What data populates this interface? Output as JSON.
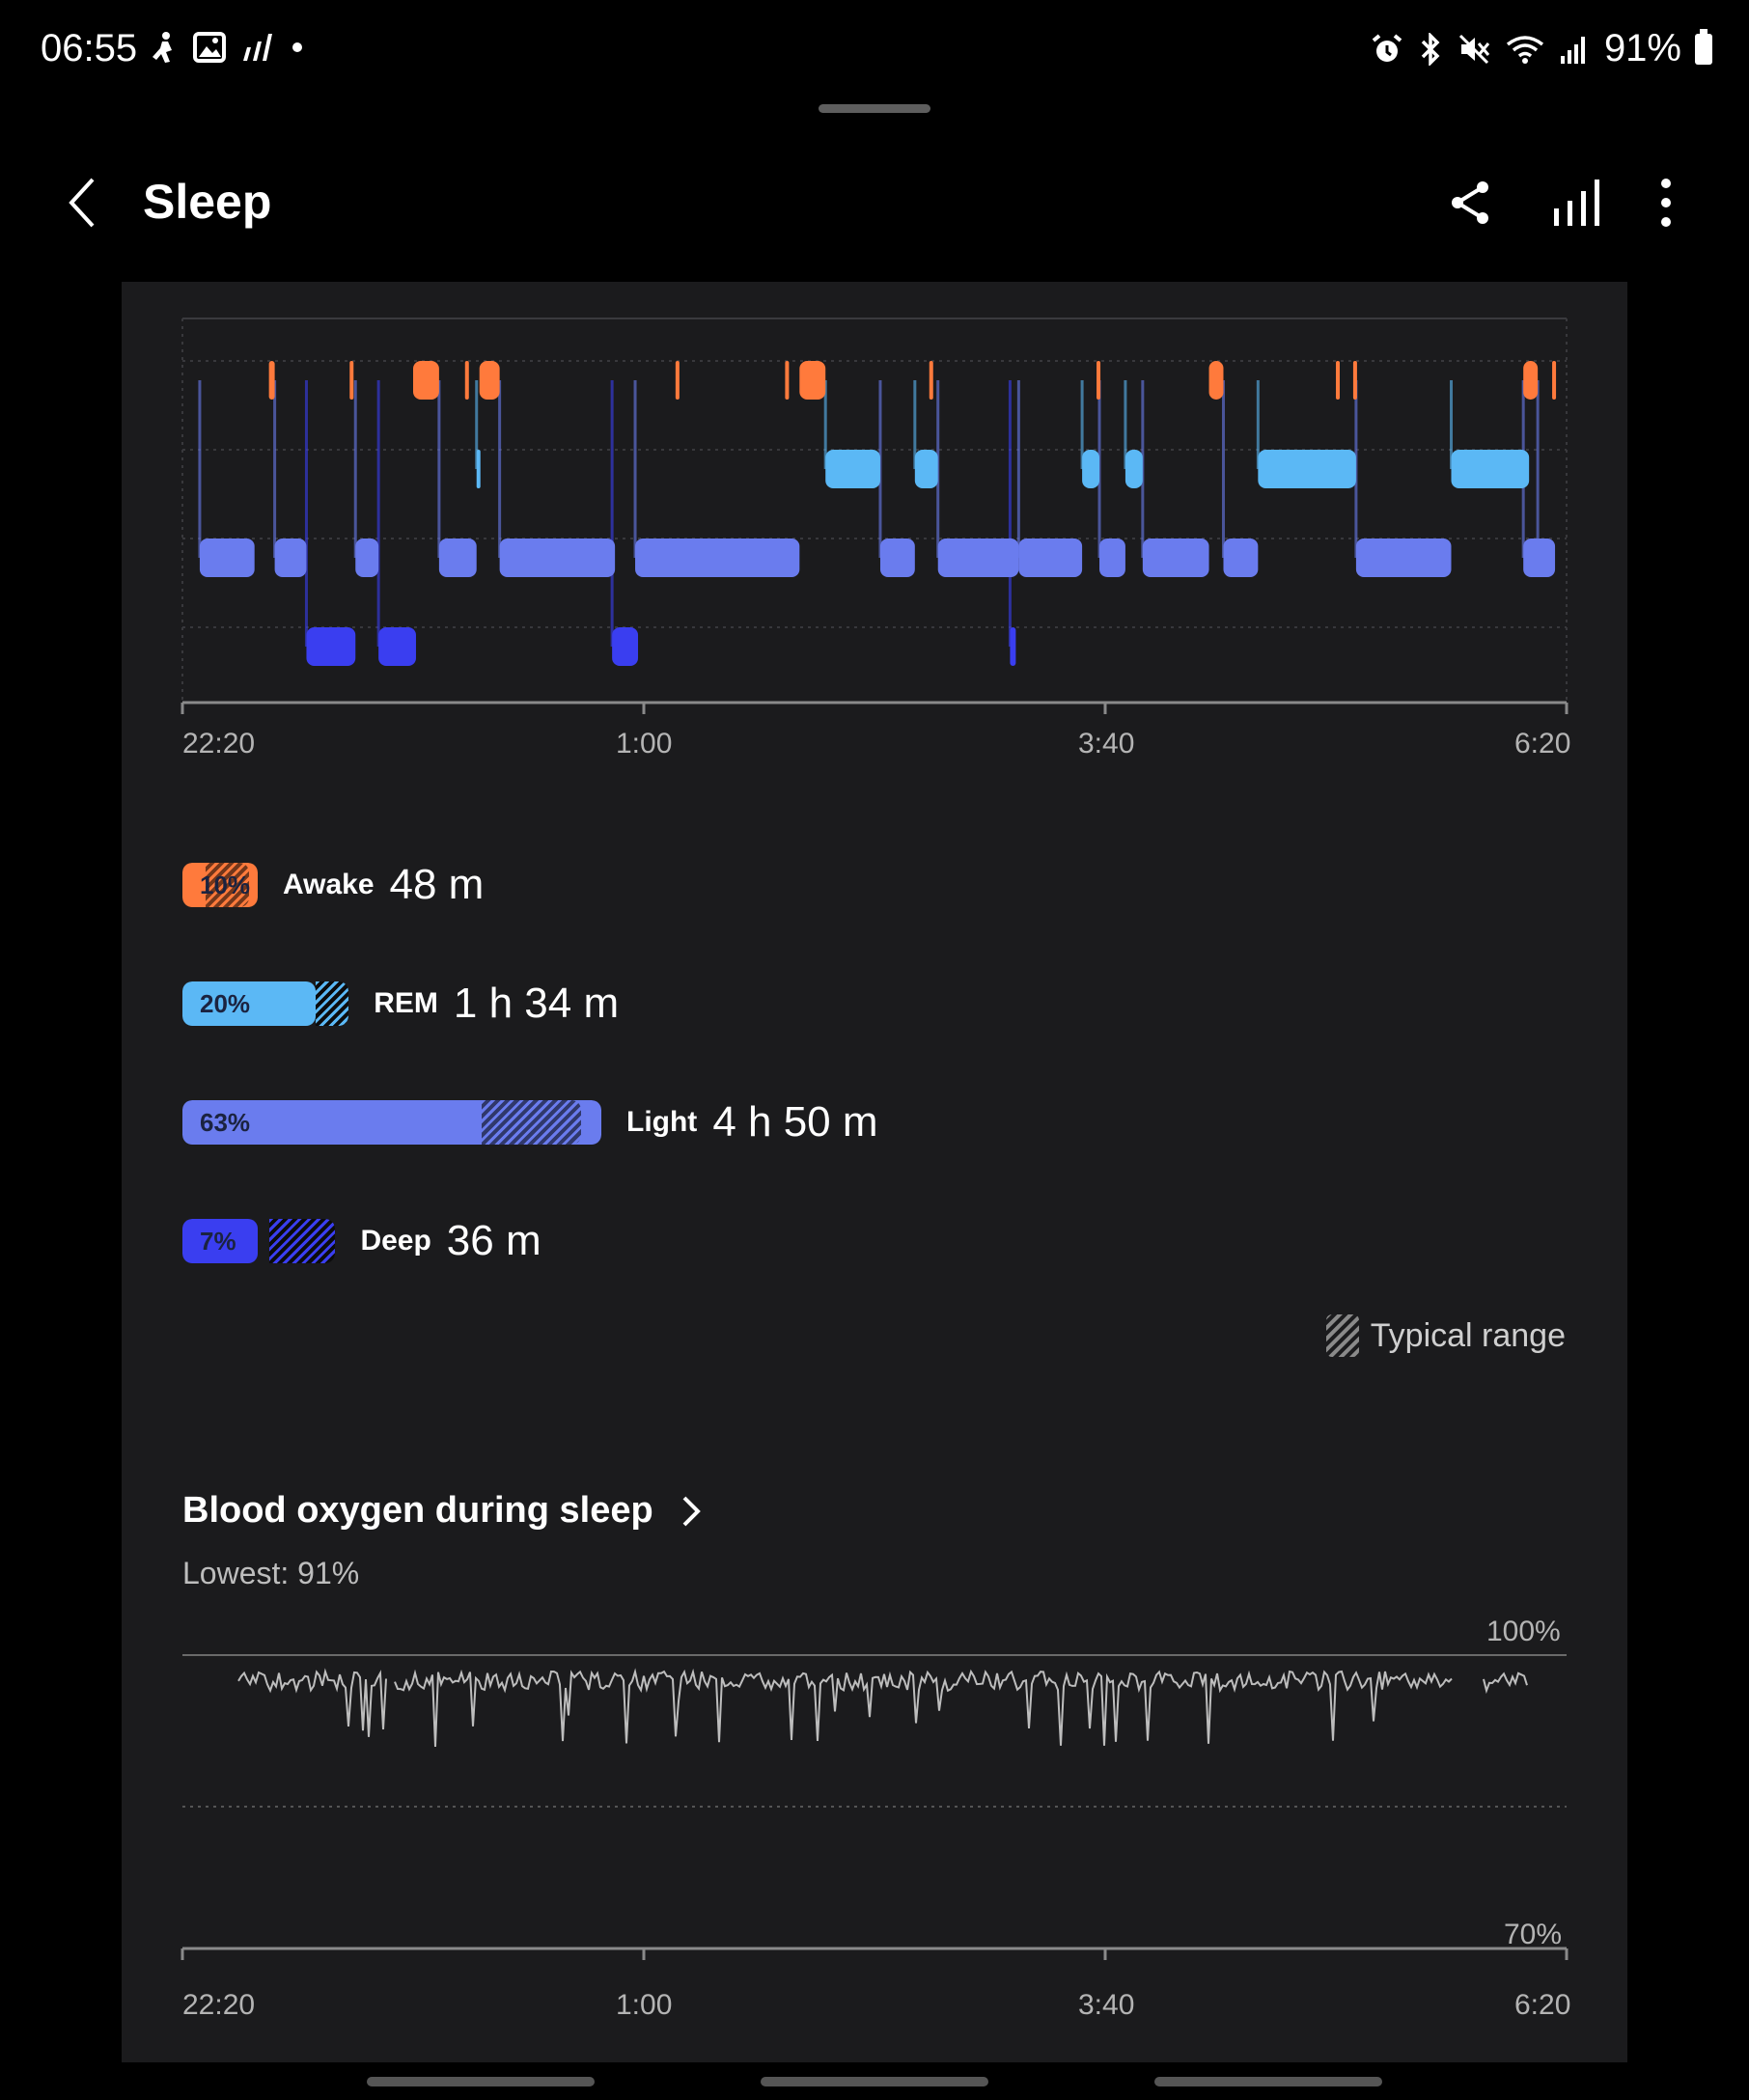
{
  "status_bar": {
    "time": "06:55",
    "left_icons": [
      "person-walk-icon",
      "gallery-icon",
      "signal-bars-icon",
      "dot-icon"
    ],
    "right_icons": [
      "alarm-icon",
      "bluetooth-icon",
      "mute-icon",
      "wifi-icon",
      "cell-signal-icon"
    ],
    "battery": "91%"
  },
  "app_bar": {
    "title": "Sleep",
    "actions": [
      "share-icon",
      "chart-icon",
      "more-vert-icon"
    ]
  },
  "hypnogram": {
    "x_ticks": [
      "22:20",
      "1:00",
      "3:40",
      "6:20"
    ],
    "stages": [
      "Awake",
      "REM",
      "Light",
      "Deep"
    ],
    "colors": {
      "awake": "#ff7a3c",
      "rem": "#5bb8f5",
      "light": "#6a7cee",
      "deep": "#3a3ef0"
    },
    "start_minutes": 0,
    "end_minutes": 480,
    "segments": [
      {
        "stage": "light",
        "from": 6,
        "to": 25
      },
      {
        "stage": "awake",
        "from": 30,
        "to": 32
      },
      {
        "stage": "light",
        "from": 32,
        "to": 43
      },
      {
        "stage": "deep",
        "from": 43,
        "to": 60
      },
      {
        "stage": "awake",
        "from": 58,
        "to": 59
      },
      {
        "stage": "light",
        "from": 60,
        "to": 68
      },
      {
        "stage": "deep",
        "from": 68,
        "to": 81
      },
      {
        "stage": "awake",
        "from": 80,
        "to": 89
      },
      {
        "stage": "light",
        "from": 89,
        "to": 102
      },
      {
        "stage": "awake",
        "from": 98,
        "to": 99
      },
      {
        "stage": "rem",
        "from": 102,
        "to": 103
      },
      {
        "stage": "awake",
        "from": 103,
        "to": 110
      },
      {
        "stage": "light",
        "from": 110,
        "to": 150
      },
      {
        "stage": "deep",
        "from": 149,
        "to": 158
      },
      {
        "stage": "light",
        "from": 157,
        "to": 214
      },
      {
        "stage": "awake",
        "from": 171,
        "to": 172
      },
      {
        "stage": "awake",
        "from": 209,
        "to": 210
      },
      {
        "stage": "awake",
        "from": 214,
        "to": 223
      },
      {
        "stage": "rem",
        "from": 223,
        "to": 242
      },
      {
        "stage": "light",
        "from": 242,
        "to": 254
      },
      {
        "stage": "awake",
        "from": 259,
        "to": 260
      },
      {
        "stage": "rem",
        "from": 254,
        "to": 262
      },
      {
        "stage": "light",
        "from": 262,
        "to": 290
      },
      {
        "stage": "deep",
        "from": 287,
        "to": 289
      },
      {
        "stage": "light",
        "from": 290,
        "to": 312
      },
      {
        "stage": "rem",
        "from": 312,
        "to": 318
      },
      {
        "stage": "light",
        "from": 318,
        "to": 327
      },
      {
        "stage": "awake",
        "from": 317,
        "to": 318
      },
      {
        "stage": "rem",
        "from": 327,
        "to": 333
      },
      {
        "stage": "light",
        "from": 333,
        "to": 356
      },
      {
        "stage": "awake",
        "from": 356,
        "to": 361
      },
      {
        "stage": "light",
        "from": 361,
        "to": 373
      },
      {
        "stage": "rem",
        "from": 373,
        "to": 407
      },
      {
        "stage": "awake",
        "from": 400,
        "to": 401
      },
      {
        "stage": "awake",
        "from": 406,
        "to": 407
      },
      {
        "stage": "light",
        "from": 407,
        "to": 440
      },
      {
        "stage": "rem",
        "from": 440,
        "to": 467
      },
      {
        "stage": "awake",
        "from": 465,
        "to": 470
      },
      {
        "stage": "light",
        "from": 470,
        "to": 474
      },
      {
        "stage": "light",
        "from": 465,
        "to": 476
      },
      {
        "stage": "awake",
        "from": 475,
        "to": 476
      }
    ]
  },
  "stages_summary": [
    {
      "name": "Awake",
      "percent": "10%",
      "duration": "48 m",
      "fraction": 0.1,
      "typical_from": 0.035,
      "typical_to": 0.1,
      "color": "#ff7a3c"
    },
    {
      "name": "REM",
      "percent": "20%",
      "duration": "1 h 34 m",
      "fraction": 0.2,
      "typical_from": 0.2,
      "typical_to": 0.25,
      "color": "#5bb8f5"
    },
    {
      "name": "Light",
      "percent": "63%",
      "duration": "4 h 50 m",
      "fraction": 0.63,
      "typical_from": 0.45,
      "typical_to": 0.6,
      "color": "#6a7cee"
    },
    {
      "name": "Deep",
      "percent": "7%",
      "duration": "36 m",
      "fraction": 0.07,
      "typical_from": 0.13,
      "typical_to": 0.23,
      "color": "#3a3ef0"
    }
  ],
  "typical_range_label": "Typical range",
  "blood_oxygen": {
    "title": "Blood oxygen during sleep",
    "lowest": "Lowest: 91%",
    "y_top": "100%",
    "y_bottom": "70%",
    "x_ticks": [
      "22:20",
      "1:00",
      "3:40",
      "6:20"
    ]
  }
}
